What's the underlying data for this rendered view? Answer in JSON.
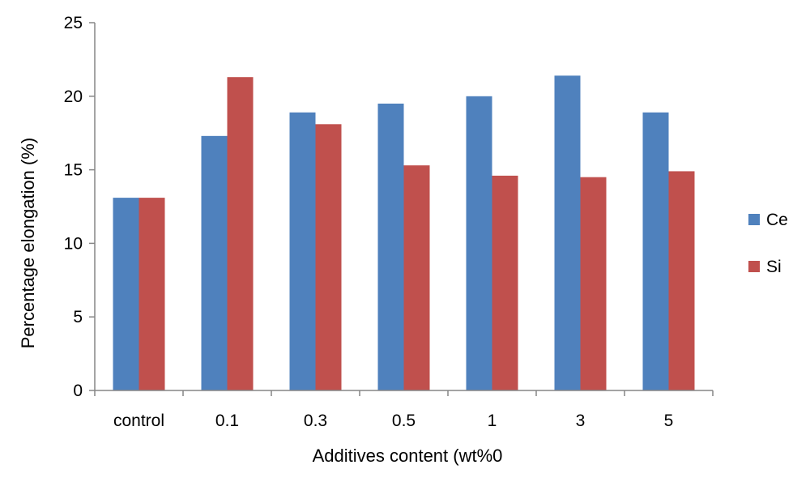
{
  "chart_data": {
    "type": "bar",
    "title": "",
    "xlabel": "Additives content (wt%0",
    "ylabel": "Percentage elongation (%)",
    "categories": [
      "control",
      "0.1",
      "0.3",
      "0.5",
      "1",
      "3",
      "5"
    ],
    "ylim": [
      0,
      25
    ],
    "yticks": [
      0,
      5,
      10,
      15,
      20,
      25
    ],
    "grid": false,
    "legend_position": "right",
    "series": [
      {
        "name": "Ce",
        "color": "#4F81BD",
        "values": [
          13.1,
          17.3,
          18.9,
          19.5,
          20.0,
          21.4,
          18.9
        ]
      },
      {
        "name": "Si",
        "color": "#C0504D",
        "values": [
          13.1,
          21.3,
          18.1,
          15.3,
          14.6,
          14.5,
          14.9
        ]
      }
    ]
  }
}
